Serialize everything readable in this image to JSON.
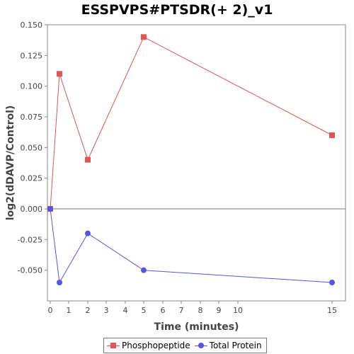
{
  "chart_data": {
    "type": "line",
    "title": "ESSPVPS#PTSDR(+ 2)_v1",
    "xlabel": "Time (minutes)",
    "ylabel": "log2(dDAVP/Control)",
    "x_ticks": [
      0,
      1,
      2,
      3,
      4,
      5,
      6,
      7,
      8,
      9,
      10,
      15
    ],
    "y_ticks": [
      "0.150",
      "0.125",
      "0.100",
      "0.075",
      "0.050",
      "0.025",
      "0.000",
      "-0.025",
      "-0.050"
    ],
    "ylim": [
      -0.075,
      0.15
    ],
    "x": [
      0,
      0.5,
      2,
      5,
      15
    ],
    "series": [
      {
        "name": "Phosphopeptide",
        "values": [
          0.0,
          0.11,
          0.04,
          0.14,
          0.06
        ],
        "color": "#e05555",
        "marker": "square"
      },
      {
        "name": "Total Protein",
        "values": [
          0.0,
          -0.06,
          -0.02,
          -0.05,
          -0.06
        ],
        "color": "#5555e0",
        "marker": "circle"
      }
    ],
    "legend_position": "bottom",
    "grid": false,
    "zero_line": true
  }
}
